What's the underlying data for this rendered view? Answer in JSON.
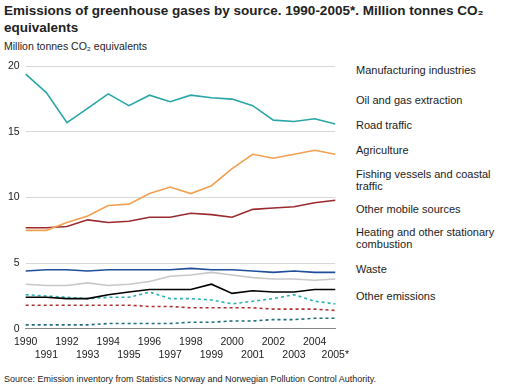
{
  "chart_data": {
    "type": "line",
    "title": "Emissions of greenhouse gases by source. 1990-2005*. Million tonnes CO₂ equivalents",
    "y_label": "Million tonnes CO₂ equivalents",
    "source": "Source: Emission inventory from Statistics Norway and Norwegian Pollution Control Authority.",
    "categories": [
      "1990",
      "1991",
      "1992",
      "1993",
      "1994",
      "1995",
      "1996",
      "1997",
      "1998",
      "1999",
      "2000",
      "2001",
      "2002",
      "2003",
      "2004",
      "2005*"
    ],
    "ylim": [
      0,
      20
    ],
    "yticks": [
      0,
      5,
      10,
      15,
      20
    ],
    "grid": true,
    "legend": "right",
    "series": [
      {
        "name": "Manufacturing industries",
        "color": "#2aa6a6",
        "line_style": "solid",
        "values": [
          19.4,
          18.0,
          15.7,
          16.8,
          17.9,
          17.0,
          17.8,
          17.3,
          17.8,
          17.6,
          17.5,
          17.0,
          15.9,
          15.8,
          16.0,
          15.6
        ]
      },
      {
        "name": "Oil and gas extraction",
        "color": "#f2a052",
        "line_style": "solid",
        "values": [
          7.5,
          7.5,
          8.1,
          8.6,
          9.4,
          9.5,
          10.3,
          10.8,
          10.3,
          10.9,
          12.2,
          13.3,
          13.0,
          13.3,
          13.6,
          13.3
        ]
      },
      {
        "name": "Road traffic",
        "color": "#9a2a2e",
        "line_style": "solid",
        "values": [
          7.7,
          7.7,
          7.8,
          8.3,
          8.1,
          8.2,
          8.5,
          8.5,
          8.8,
          8.7,
          8.5,
          9.1,
          9.2,
          9.3,
          9.6,
          9.8
        ]
      },
      {
        "name": "Agriculture",
        "color": "#1f4e9a",
        "line_style": "solid",
        "values": [
          4.4,
          4.5,
          4.5,
          4.4,
          4.5,
          4.5,
          4.5,
          4.5,
          4.6,
          4.5,
          4.5,
          4.4,
          4.3,
          4.4,
          4.3,
          4.3
        ]
      },
      {
        "name": "Fishing vessels and coastal traffic",
        "color": "#c8c8c8",
        "line_style": "solid",
        "values": [
          3.4,
          3.3,
          3.3,
          3.5,
          3.3,
          3.4,
          3.6,
          4.0,
          4.1,
          4.3,
          4.1,
          3.9,
          3.8,
          3.8,
          3.7,
          3.8
        ]
      },
      {
        "name": "Other mobile sources",
        "color": "#000000",
        "line_style": "solid",
        "values": [
          2.4,
          2.4,
          2.3,
          2.3,
          2.6,
          2.8,
          3.0,
          3.0,
          3.0,
          3.4,
          2.7,
          2.9,
          2.8,
          2.8,
          3.0,
          3.0
        ]
      },
      {
        "name": "Heating and other stationary combustion",
        "color": "#2ab0b0",
        "line_style": "dashed",
        "values": [
          2.6,
          2.5,
          2.4,
          2.3,
          2.4,
          2.4,
          2.8,
          2.3,
          2.3,
          2.2,
          1.9,
          2.1,
          2.3,
          2.6,
          2.1,
          1.9
        ]
      },
      {
        "name": "Waste",
        "color": "#b03030",
        "line_style": "dashed",
        "values": [
          1.8,
          1.8,
          1.8,
          1.8,
          1.8,
          1.8,
          1.7,
          1.7,
          1.6,
          1.6,
          1.6,
          1.6,
          1.5,
          1.5,
          1.5,
          1.4
        ]
      },
      {
        "name": "Other emissions",
        "color": "#1f6e7a",
        "line_style": "dashed",
        "values": [
          0.3,
          0.3,
          0.3,
          0.3,
          0.4,
          0.4,
          0.4,
          0.4,
          0.5,
          0.5,
          0.6,
          0.6,
          0.7,
          0.7,
          0.8,
          0.8
        ]
      }
    ]
  }
}
